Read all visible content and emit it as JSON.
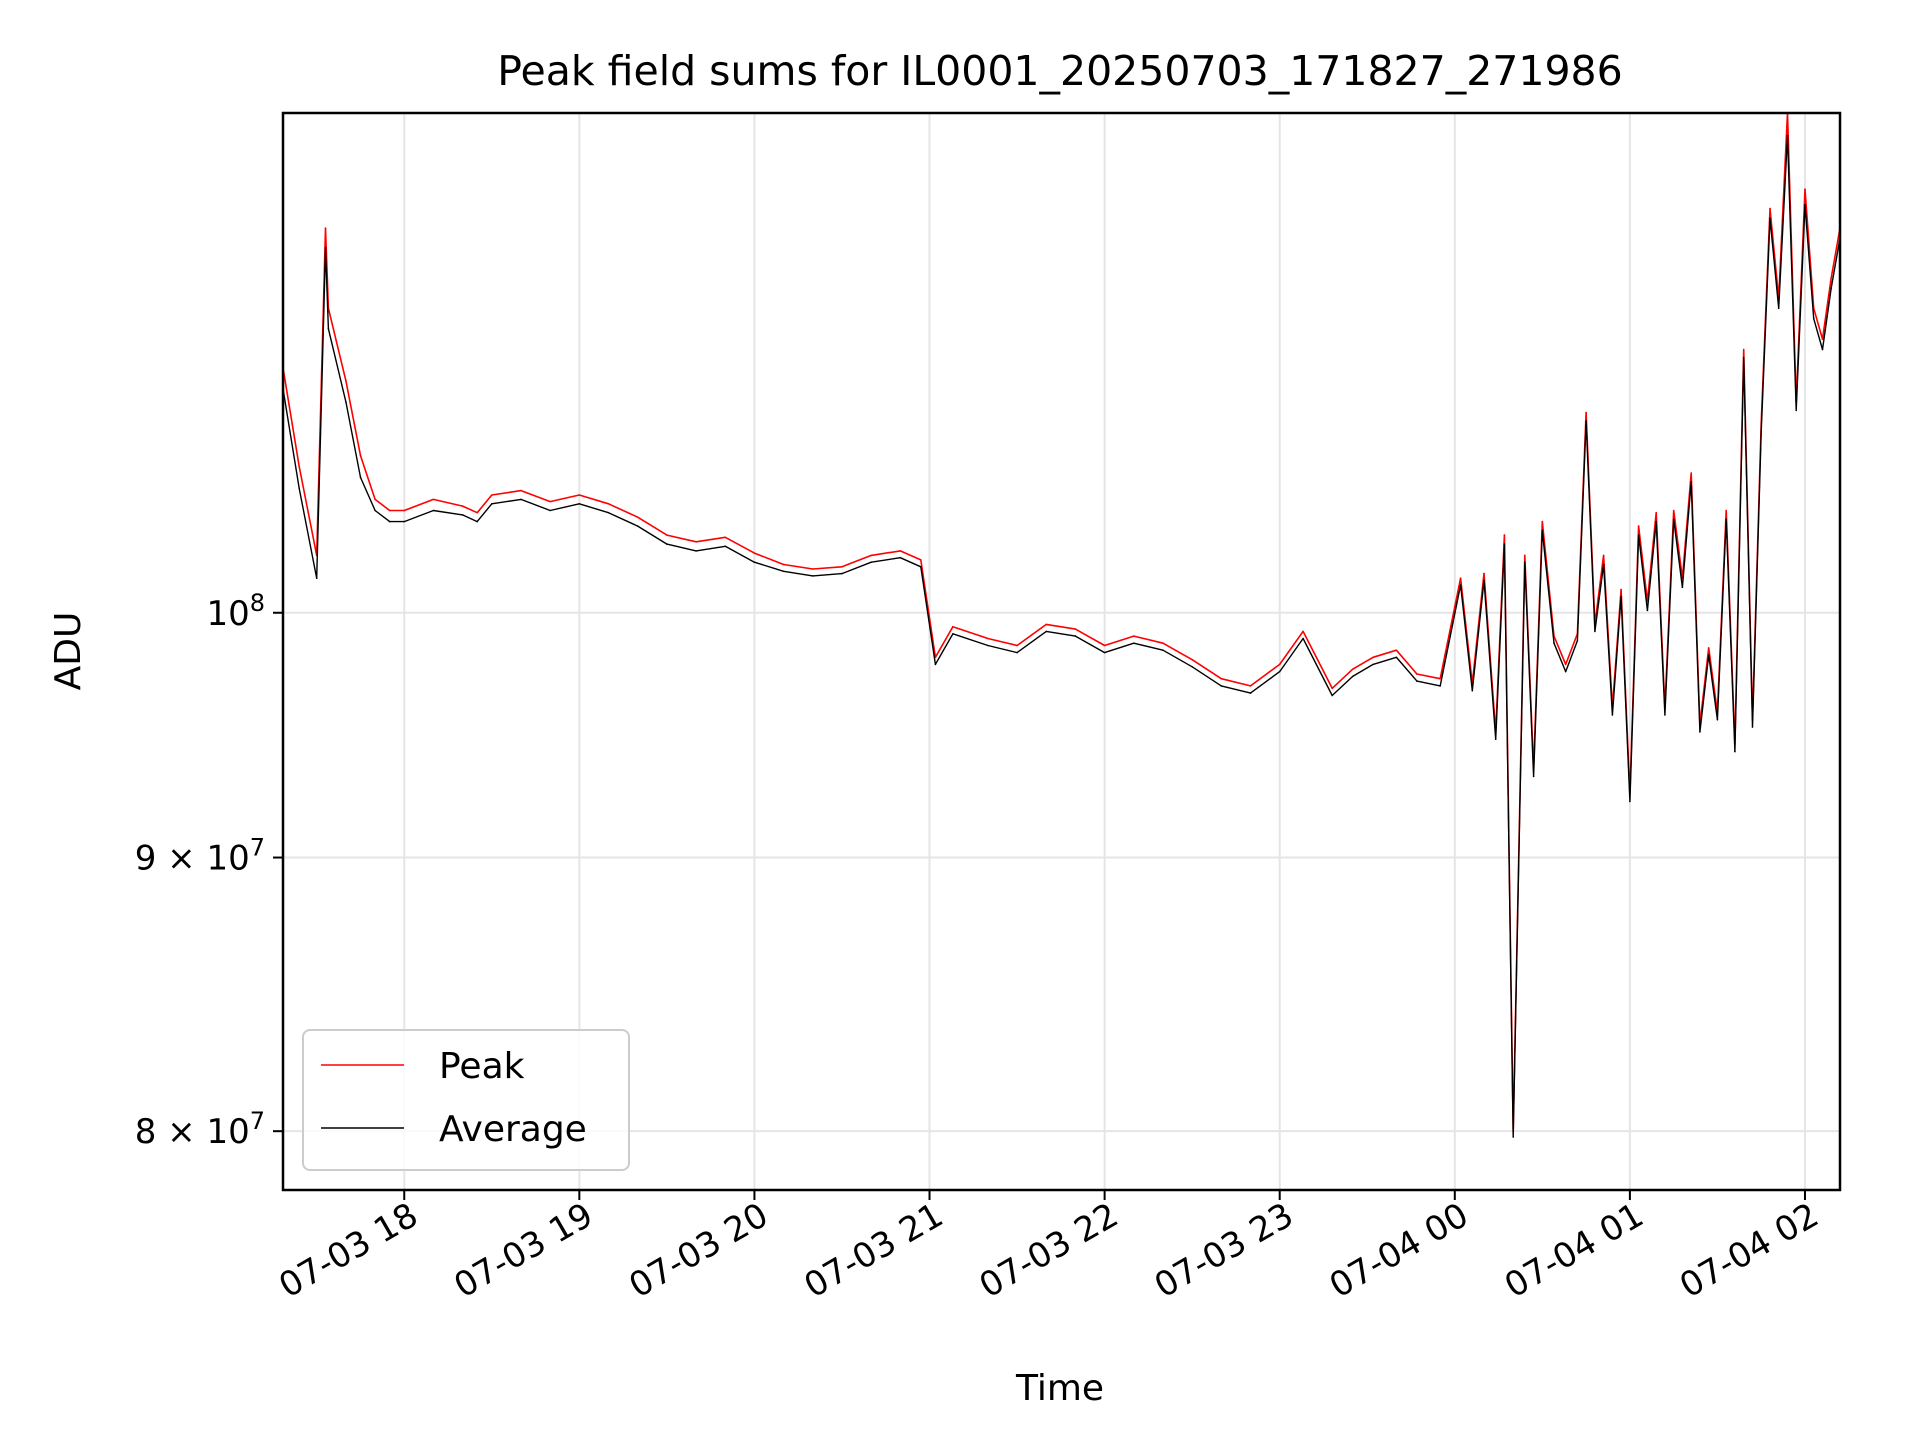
{
  "chart_data": {
    "type": "line",
    "title": "Peak field sums for IL0001_20250703_171827_271986",
    "xlabel": "Time",
    "ylabel": "ADU",
    "yscale": "log",
    "xlim": [
      "2025-07-03T17:18:27",
      "2025-07-04T02:12:00"
    ],
    "ylim": [
      78000000,
      124000000
    ],
    "grid": true,
    "legend_position": "lower-left",
    "x_ticks": [
      {
        "t": "2025-07-03T18:00",
        "label": "07-03 18"
      },
      {
        "t": "2025-07-03T19:00",
        "label": "07-03 19"
      },
      {
        "t": "2025-07-03T20:00",
        "label": "07-03 20"
      },
      {
        "t": "2025-07-03T21:00",
        "label": "07-03 21"
      },
      {
        "t": "2025-07-03T22:00",
        "label": "07-03 22"
      },
      {
        "t": "2025-07-03T23:00",
        "label": "07-03 23"
      },
      {
        "t": "2025-07-04T00:00",
        "label": "07-04 00"
      },
      {
        "t": "2025-07-04T01:00",
        "label": "07-04 01"
      },
      {
        "t": "2025-07-04T02:00",
        "label": "07-04 02"
      }
    ],
    "y_ticks": [
      {
        "v": 80000000,
        "base": "8 × 10",
        "exp": "7"
      },
      {
        "v": 90000000,
        "base": "9 × 10",
        "exp": "7"
      },
      {
        "v": 100000000,
        "base": "10",
        "exp": "8"
      }
    ],
    "x": [
      "2025-07-03T17:18",
      "2025-07-03T17:24",
      "2025-07-03T17:30",
      "2025-07-03T17:33",
      "2025-07-03T17:34",
      "2025-07-03T17:40",
      "2025-07-03T17:45",
      "2025-07-03T17:50",
      "2025-07-03T17:55",
      "2025-07-03T18:00",
      "2025-07-03T18:10",
      "2025-07-03T18:20",
      "2025-07-03T18:25",
      "2025-07-03T18:30",
      "2025-07-03T18:40",
      "2025-07-03T18:50",
      "2025-07-03T19:00",
      "2025-07-03T19:10",
      "2025-07-03T19:20",
      "2025-07-03T19:30",
      "2025-07-03T19:40",
      "2025-07-03T19:50",
      "2025-07-03T20:00",
      "2025-07-03T20:10",
      "2025-07-03T20:20",
      "2025-07-03T20:30",
      "2025-07-03T20:40",
      "2025-07-03T20:50",
      "2025-07-03T20:57",
      "2025-07-03T21:02",
      "2025-07-03T21:08",
      "2025-07-03T21:20",
      "2025-07-03T21:30",
      "2025-07-03T21:40",
      "2025-07-03T21:50",
      "2025-07-03T22:00",
      "2025-07-03T22:10",
      "2025-07-03T22:20",
      "2025-07-03T22:30",
      "2025-07-03T22:40",
      "2025-07-03T22:50",
      "2025-07-03T23:00",
      "2025-07-03T23:08",
      "2025-07-03T23:18",
      "2025-07-03T23:25",
      "2025-07-03T23:32",
      "2025-07-03T23:40",
      "2025-07-03T23:47",
      "2025-07-03T23:55",
      "2025-07-04T00:02",
      "2025-07-04T00:06",
      "2025-07-04T00:10",
      "2025-07-04T00:14",
      "2025-07-04T00:17",
      "2025-07-04T00:20",
      "2025-07-04T00:24",
      "2025-07-04T00:27",
      "2025-07-04T00:30",
      "2025-07-04T00:34",
      "2025-07-04T00:38",
      "2025-07-04T00:42",
      "2025-07-04T00:45",
      "2025-07-04T00:48",
      "2025-07-04T00:51",
      "2025-07-04T00:54",
      "2025-07-04T00:57",
      "2025-07-04T01:00",
      "2025-07-04T01:03",
      "2025-07-04T01:06",
      "2025-07-04T01:09",
      "2025-07-04T01:12",
      "2025-07-04T01:15",
      "2025-07-04T01:18",
      "2025-07-04T01:21",
      "2025-07-04T01:24",
      "2025-07-04T01:27",
      "2025-07-04T01:30",
      "2025-07-04T01:33",
      "2025-07-04T01:36",
      "2025-07-04T01:39",
      "2025-07-04T01:42",
      "2025-07-04T01:45",
      "2025-07-04T01:48",
      "2025-07-04T01:51",
      "2025-07-04T01:54",
      "2025-07-04T01:57",
      "2025-07-04T02:00",
      "2025-07-04T02:03",
      "2025-07-04T02:06",
      "2025-07-04T02:09",
      "2025-07-04T02:12"
    ],
    "series": [
      {
        "name": "Peak",
        "color": "#ff0000",
        "values": [
          111500000,
          106500000,
          102500000,
          118000000,
          114000000,
          110500000,
          107000000,
          105000000,
          104500000,
          104500000,
          105000000,
          104700000,
          104400000,
          105200000,
          105400000,
          104900000,
          105200000,
          104800000,
          104200000,
          103400000,
          103100000,
          103300000,
          102600000,
          102100000,
          101900000,
          102000000,
          102500000,
          102700000,
          102300000,
          98100000,
          99400000,
          98900000,
          98600000,
          99500000,
          99300000,
          98600000,
          99000000,
          98700000,
          98000000,
          97200000,
          96900000,
          97800000,
          99200000,
          96800000,
          97600000,
          98100000,
          98400000,
          97400000,
          97200000,
          101500000,
          97000000,
          101700000,
          95000000,
          103400000,
          80000000,
          102500000,
          93500000,
          104000000,
          99000000,
          97800000,
          99100000,
          109000000,
          99500000,
          102500000,
          96000000,
          101000000,
          92500000,
          103800000,
          100500000,
          104400000,
          96000000,
          104500000,
          101500000,
          106200000,
          95300000,
          98500000,
          95800000,
          104500000,
          94500000,
          112000000,
          95500000,
          108500000,
          119000000,
          114500000,
          124000000,
          109500000,
          120000000,
          114000000,
          112500000,
          115500000,
          118000000
        ]
      },
      {
        "name": "Average",
        "color": "#000000",
        "values": [
          110500000,
          105500000,
          101500000,
          117000000,
          113000000,
          109500000,
          106000000,
          104500000,
          104000000,
          104000000,
          104500000,
          104300000,
          104000000,
          104800000,
          105000000,
          104500000,
          104800000,
          104400000,
          103800000,
          103000000,
          102700000,
          102900000,
          102200000,
          101800000,
          101600000,
          101700000,
          102200000,
          102400000,
          102000000,
          97800000,
          99100000,
          98600000,
          98300000,
          99200000,
          99000000,
          98300000,
          98700000,
          98400000,
          97700000,
          96900000,
          96600000,
          97500000,
          98900000,
          96500000,
          97300000,
          97800000,
          98100000,
          97100000,
          96900000,
          101200000,
          96700000,
          101400000,
          94700000,
          103000000,
          79800000,
          102200000,
          93200000,
          103600000,
          98700000,
          97500000,
          98800000,
          108600000,
          99200000,
          102100000,
          95700000,
          100700000,
          92200000,
          103400000,
          100100000,
          104000000,
          95700000,
          104100000,
          101100000,
          105800000,
          95000000,
          98200000,
          95500000,
          104100000,
          94200000,
          111600000,
          95200000,
          108100000,
          118500000,
          114000000,
          122800000,
          109100000,
          119200000,
          113500000,
          112000000,
          115000000,
          117500000
        ]
      }
    ]
  }
}
